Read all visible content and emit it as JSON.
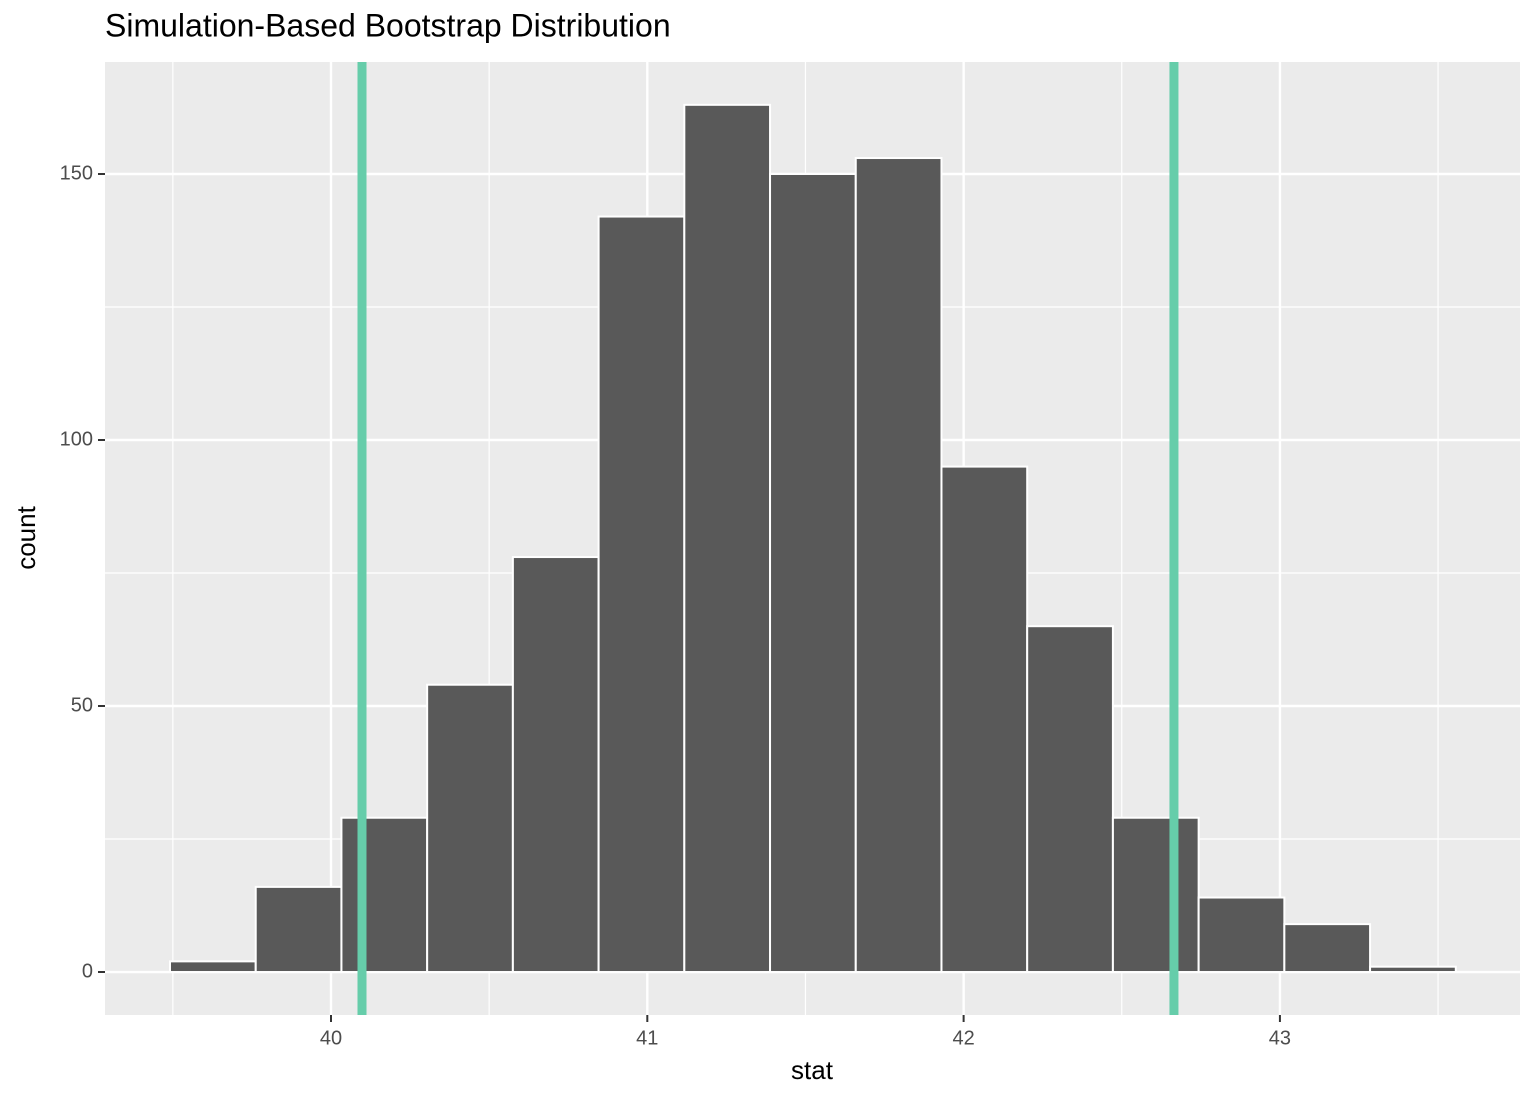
{
  "chart_data": {
    "type": "histogram",
    "title": "Simulation-Based Bootstrap Distribution",
    "xlabel": "stat",
    "ylabel": "count",
    "bins": [
      39.491,
      39.762,
      40.033,
      40.304,
      40.575,
      40.846,
      41.117,
      41.388,
      41.659,
      41.93,
      42.201,
      42.472,
      42.743,
      43.014,
      43.285,
      43.556
    ],
    "values": [
      2,
      16,
      29,
      54,
      78,
      142,
      163,
      150,
      153,
      95,
      65,
      29,
      14,
      9,
      1
    ],
    "color": "#595959",
    "edge_color": "#ffffff",
    "endpoints": [
      40.098,
      42.665
    ],
    "endpoint_color": "#66cdaa",
    "xlim": [
      39.2855,
      43.759
    ],
    "ylim": [
      -8.08,
      171.05
    ],
    "xticks": [
      40,
      41,
      42,
      43
    ],
    "yticks": [
      0,
      50,
      100,
      150
    ],
    "xminor": [
      39.5,
      40.5,
      41.5,
      42.5,
      43.5
    ],
    "yminor": [
      25,
      75,
      125
    ],
    "grid": true
  }
}
